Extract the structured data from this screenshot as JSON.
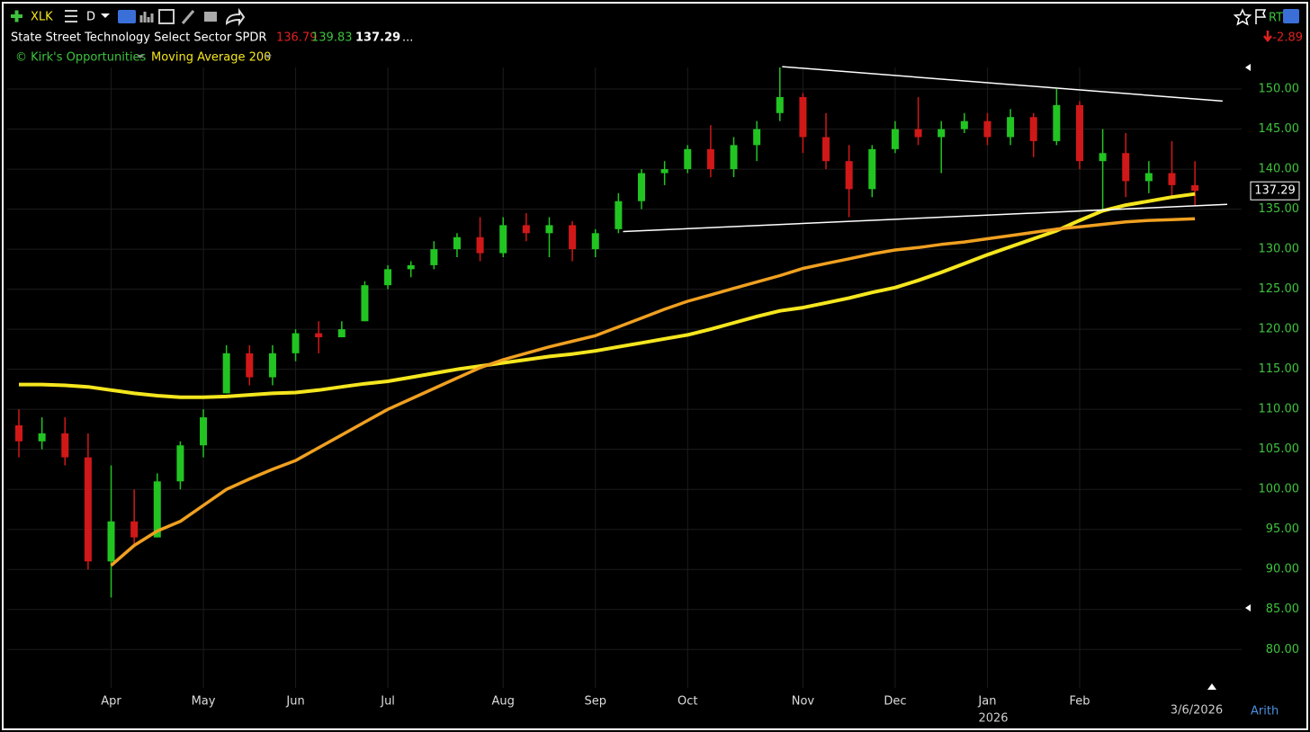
{
  "header": {
    "symbol": "XLK",
    "interval": "D",
    "rt": "RT",
    "name": "State Street Technology Select Sector SPDR",
    "low": "136.79",
    "high": "139.83",
    "last": "137.29",
    "more": "...",
    "change": "-2.89",
    "study_1": "© Kirk's Opportunities",
    "study_2": "Moving Average 200",
    "scale_mode": "Arith",
    "end_date": "3/6/2026",
    "year_label": "2026"
  },
  "chart_data": {
    "type": "candlestick",
    "categories": [
      null,
      null,
      null,
      null,
      "Apr",
      null,
      null,
      null,
      "May",
      null,
      null,
      null,
      "Jun",
      null,
      null,
      null,
      "Jul",
      null,
      null,
      null,
      null,
      "Aug",
      null,
      null,
      null,
      "Sep",
      null,
      null,
      null,
      "Oct",
      null,
      null,
      null,
      null,
      "Nov",
      null,
      null,
      null,
      "Dec",
      null,
      null,
      null,
      "Jan",
      null,
      null,
      null,
      "Feb",
      null,
      null,
      null,
      null,
      null
    ],
    "open": [
      108,
      106,
      107,
      104,
      91,
      96,
      94,
      101,
      105.5,
      112,
      117,
      114,
      117,
      119.5,
      119,
      121,
      125.5,
      127.5,
      128,
      130,
      131.5,
      129.5,
      133,
      132,
      133,
      130,
      132.5,
      136,
      139.5,
      140,
      142.5,
      140,
      143,
      147,
      149,
      144,
      141,
      137.5,
      142.5,
      145,
      144,
      145,
      146,
      144,
      146.5,
      143.5,
      148,
      141,
      142,
      138.5,
      139.5,
      138
    ],
    "high": [
      110,
      109,
      109,
      107,
      103,
      100,
      102,
      106,
      110,
      118,
      118,
      118,
      120,
      121,
      121,
      126,
      128,
      128.5,
      131,
      132,
      134,
      134,
      134.5,
      134,
      133.5,
      132.5,
      137,
      140,
      141,
      143,
      145.5,
      144,
      146,
      152.7,
      149.5,
      147,
      143,
      143,
      146,
      149,
      146,
      147,
      147,
      147.5,
      147,
      150,
      148.5,
      145,
      144.5,
      141,
      143.5,
      141
    ],
    "low": [
      104,
      105,
      103,
      90,
      86.5,
      93,
      94,
      100,
      104,
      112,
      113,
      113,
      116,
      117,
      119,
      121,
      125,
      126.5,
      127.5,
      129,
      128.5,
      129,
      131,
      129,
      128.5,
      129,
      132,
      135,
      138,
      139.5,
      139,
      139,
      141,
      146,
      142,
      140,
      134,
      136.5,
      142,
      143,
      139.5,
      144.5,
      143,
      143,
      141.5,
      143,
      140,
      135,
      136.5,
      137,
      136.5,
      135.5
    ],
    "close": [
      106,
      107,
      104,
      91,
      96,
      94,
      101,
      105.5,
      109,
      117,
      114,
      117,
      119.5,
      119,
      120,
      125.5,
      127.5,
      128,
      130,
      131.5,
      129.5,
      133,
      132,
      133,
      130,
      132,
      136,
      139.5,
      140,
      142.5,
      140,
      143,
      145,
      149,
      144,
      141,
      137.5,
      142.5,
      145,
      144,
      145,
      146,
      144,
      146.5,
      143.5,
      148,
      141,
      142,
      138.5,
      139.5,
      138,
      137.29
    ],
    "up_color": "#22c422",
    "down_color": "#d01818",
    "series": [
      {
        "name": "Moving Average 200",
        "color": "#f5e61e",
        "values": [
          113.1,
          113.1,
          113.0,
          112.8,
          112.4,
          112.0,
          111.7,
          111.5,
          111.5,
          111.6,
          111.8,
          112.0,
          112.1,
          112.4,
          112.8,
          113.2,
          113.5,
          114.0,
          114.5,
          115.0,
          115.4,
          115.8,
          116.2,
          116.6,
          116.9,
          117.3,
          117.8,
          118.3,
          118.8,
          119.3,
          120.0,
          120.8,
          121.6,
          122.3,
          122.7,
          123.3,
          123.9,
          124.6,
          125.2,
          126.1,
          127.1,
          128.2,
          129.3,
          130.3,
          131.3,
          132.3,
          133.6,
          134.8,
          135.5,
          136.0,
          136.5,
          136.9
        ]
      },
      {
        "color": "#f0a020",
        "values": [
          null,
          null,
          null,
          null,
          90.5,
          93,
          94.8,
          96,
          98,
          100,
          101.3,
          102.5,
          103.6,
          105.2,
          106.8,
          108.4,
          110,
          111.3,
          112.6,
          113.9,
          115.2,
          116.2,
          117,
          117.8,
          118.5,
          119.2,
          120.3,
          121.4,
          122.5,
          123.5,
          124.3,
          125.1,
          125.9,
          126.7,
          127.6,
          128.2,
          128.8,
          129.4,
          129.9,
          130.2,
          130.6,
          130.9,
          131.3,
          131.7,
          132.1,
          132.5,
          132.8,
          133.1,
          133.4,
          133.6,
          133.7,
          133.8
        ]
      }
    ],
    "trendlines": [
      {
        "x": [
          33.1,
          52.2
        ],
        "y": [
          152.8,
          148.5
        ]
      },
      {
        "x": [
          26.2,
          52.4
        ],
        "y": [
          132.2,
          135.6
        ]
      }
    ],
    "ylim": [
      75.2,
      152.7
    ],
    "yticks": [
      {
        "value": 80,
        "label": "80.00"
      },
      {
        "value": 85,
        "label": "85.00"
      },
      {
        "value": 90,
        "label": "90.00"
      },
      {
        "value": 95,
        "label": "95.00"
      },
      {
        "value": 100,
        "label": "100.00"
      },
      {
        "value": 105,
        "label": "105.00"
      },
      {
        "value": 110,
        "label": "110.00"
      },
      {
        "value": 115,
        "label": "115.00"
      },
      {
        "value": 120,
        "label": "120.00"
      },
      {
        "value": 125,
        "label": "125.00"
      },
      {
        "value": 130,
        "label": "130.00"
      },
      {
        "value": 135,
        "label": "135.00"
      },
      {
        "value": 140,
        "label": "140.00"
      },
      {
        "value": 145,
        "label": "145.00"
      },
      {
        "value": 150,
        "label": "150.00"
      }
    ],
    "grid": true
  }
}
